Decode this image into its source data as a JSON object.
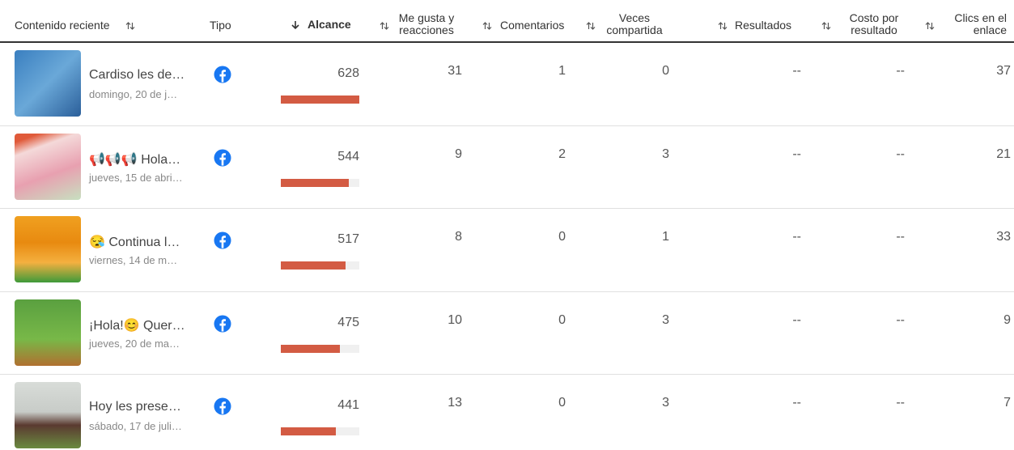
{
  "table": {
    "headers": {
      "content": "Contenido reciente",
      "type": "Tipo",
      "reach": "Alcance",
      "likes": "Me gusta y reacciones",
      "comments": "Comentarios",
      "shares": "Veces compartida",
      "results": "Resultados",
      "cost": "Costo por resultado",
      "clicks": "Clics en el enlace"
    },
    "rows": [
      {
        "title": "Cardiso les de…",
        "date": "domingo, 20 de j…",
        "reach": 628,
        "likes": 31,
        "comments": 1,
        "shares": 0,
        "results": "--",
        "cost": "--",
        "clicks": 37
      },
      {
        "title": "📢📢📢 Hola…",
        "date": "jueves, 15 de abri…",
        "reach": 544,
        "likes": 9,
        "comments": 2,
        "shares": 3,
        "results": "--",
        "cost": "--",
        "clicks": 21
      },
      {
        "title": "😪 Continua l…",
        "date": "viernes, 14 de m…",
        "reach": 517,
        "likes": 8,
        "comments": 0,
        "shares": 1,
        "results": "--",
        "cost": "--",
        "clicks": 33
      },
      {
        "title": "¡Hola!😊 Quer…",
        "date": "jueves, 20 de ma…",
        "reach": 475,
        "likes": 10,
        "comments": 0,
        "shares": 3,
        "results": "--",
        "cost": "--",
        "clicks": 9
      },
      {
        "title": "Hoy les prese…",
        "date": "sábado, 17 de juli…",
        "reach": 441,
        "likes": 13,
        "comments": 0,
        "shares": 3,
        "results": "--",
        "cost": "--",
        "clicks": 7
      }
    ]
  }
}
